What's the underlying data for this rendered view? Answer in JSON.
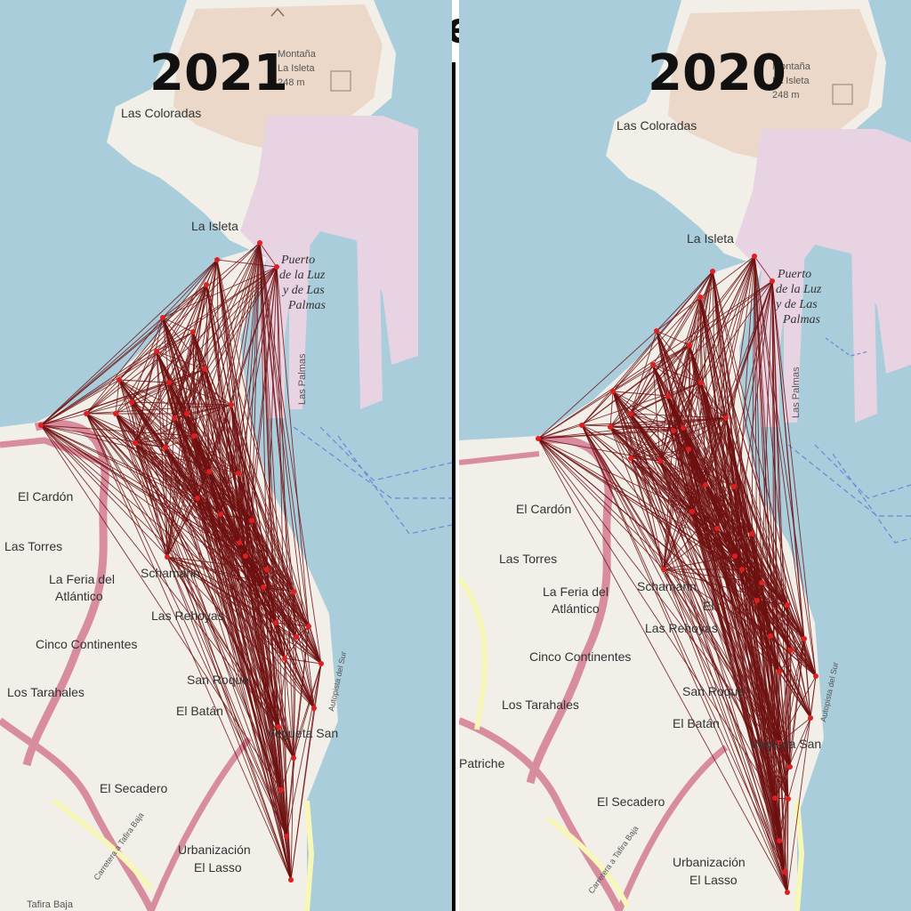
{
  "title": "Enero",
  "panels": [
    {
      "year": "2021",
      "labels": [
        "Montaña",
        "La Isleta",
        "248 m",
        "Las Coloradas",
        "La Isleta",
        "Puerto",
        "de la Luz",
        "y de Las",
        "Palmas",
        "Las Palmas",
        "El Cardón",
        "Las Torres",
        "La Feria del",
        "Atlántico",
        "Cinco Continentes",
        "Los Tarahales",
        "Schamann",
        "Las Rehoyas",
        "San Roque",
        "El Batán",
        "El Secadero",
        "Urbanización",
        "El Lasso",
        "Vegueta San",
        "Autopista del Sur",
        "Carretera a Tafira Baja",
        "Tafira Baja"
      ]
    },
    {
      "year": "2020",
      "labels": [
        "Montaña",
        "La Isleta",
        "248 m",
        "Las Coloradas",
        "La Isleta",
        "Puerto",
        "de la Luz",
        "y de Las",
        "Palmas",
        "Las Palmas",
        "El Cardón",
        "Las Torres",
        "La Feria del",
        "Atlántico",
        "Cinco Continentes",
        "Los Tarahales",
        "Schamann",
        "El",
        "Las Rehoyas",
        "San Roque",
        "El Batán",
        "Vegueta San",
        "El Secadero",
        "Urbanización",
        "El Lasso",
        "Tafira Baja",
        "Autopista del Sur",
        "Carretera a Tafira Baja",
        "Patriche"
      ]
    }
  ],
  "colors": {
    "sea": "#a9cddb",
    "land": "#f2efe9",
    "mountain": "#ecd8c8",
    "port": "#e7d3e2",
    "road_major": "#d88d9e",
    "road_secondary": "#f6f7b8",
    "edge": "#6e1010",
    "node": "#e21d1d"
  },
  "icons": [
    "peak-icon"
  ]
}
